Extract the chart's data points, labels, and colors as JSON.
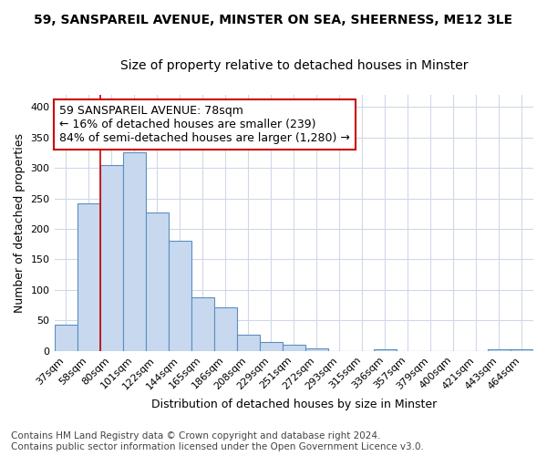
{
  "title1": "59, SANSPAREIL AVENUE, MINSTER ON SEA, SHEERNESS, ME12 3LE",
  "title2": "Size of property relative to detached houses in Minster",
  "xlabel": "Distribution of detached houses by size in Minster",
  "ylabel": "Number of detached properties",
  "categories": [
    "37sqm",
    "58sqm",
    "80sqm",
    "101sqm",
    "122sqm",
    "144sqm",
    "165sqm",
    "186sqm",
    "208sqm",
    "229sqm",
    "251sqm",
    "272sqm",
    "293sqm",
    "315sqm",
    "336sqm",
    "357sqm",
    "379sqm",
    "400sqm",
    "421sqm",
    "443sqm",
    "464sqm"
  ],
  "values": [
    43,
    242,
    305,
    325,
    227,
    180,
    88,
    72,
    26,
    15,
    10,
    4,
    0,
    0,
    3,
    0,
    0,
    0,
    0,
    3,
    3
  ],
  "bar_color": "#c8d9ef",
  "bar_edge_color": "#5a8fc0",
  "vline_color": "#cc0000",
  "annotation_text": "59 SANSPAREIL AVENUE: 78sqm\n← 16% of detached houses are smaller (239)\n84% of semi-detached houses are larger (1,280) →",
  "annotation_box_facecolor": "white",
  "annotation_box_edgecolor": "#cc0000",
  "ylim": [
    0,
    420
  ],
  "yticks": [
    0,
    50,
    100,
    150,
    200,
    250,
    300,
    350,
    400
  ],
  "footer_text": "Contains HM Land Registry data © Crown copyright and database right 2024.\nContains public sector information licensed under the Open Government Licence v3.0.",
  "bg_color": "#ffffff",
  "grid_color": "#d0d8e8",
  "title1_fontsize": 10,
  "title2_fontsize": 10,
  "xlabel_fontsize": 9,
  "ylabel_fontsize": 9,
  "tick_fontsize": 8,
  "annotation_fontsize": 9,
  "footer_fontsize": 7.5
}
